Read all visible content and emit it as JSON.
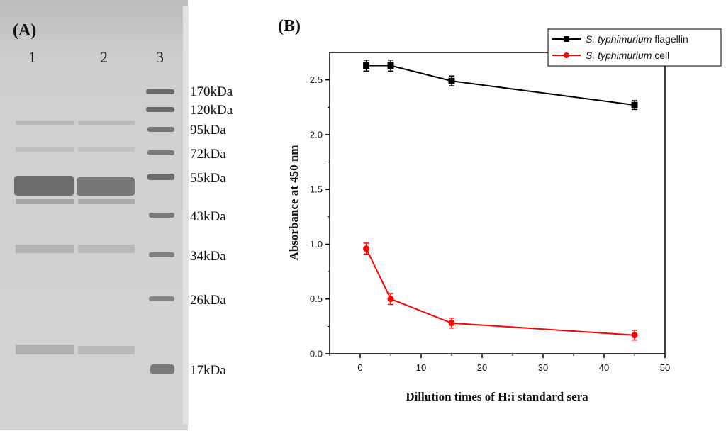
{
  "gel": {
    "panel_label": "(A)",
    "lanes": [
      "1",
      "2",
      "3"
    ],
    "markers": [
      "170kDa",
      "120kDa",
      "95kDa",
      "72kDa",
      "55kDa",
      "43kDa",
      "34kDa",
      "26kDa",
      "17kDa"
    ]
  },
  "chart_data": {
    "type": "line",
    "panel_label": "(B)",
    "title": "",
    "xlabel": "Dillution times of  H:i standard sera",
    "ylabel": "Absorbance at 450 nm",
    "xlim": [
      -5,
      50
    ],
    "ylim": [
      0.0,
      2.75
    ],
    "x_ticks": [
      0,
      10,
      20,
      30,
      40,
      50
    ],
    "y_ticks": [
      0.0,
      0.5,
      1.0,
      1.5,
      2.0,
      2.5
    ],
    "x_tick_labels": [
      "0",
      "10",
      "20",
      "30",
      "40",
      "50"
    ],
    "y_tick_labels": [
      "0.0",
      "0.5",
      "1.0",
      "1.5",
      "2.0",
      "2.5"
    ],
    "grid": false,
    "legend_position": "top-right",
    "series": [
      {
        "name_italic": "S. typhimurium",
        "name_rest": " flagellin",
        "color": "#000000",
        "marker": "square",
        "x": [
          1,
          5,
          15,
          45
        ],
        "y": [
          2.63,
          2.63,
          2.49,
          2.27
        ],
        "err": [
          0.05,
          0.05,
          0.045,
          0.04
        ]
      },
      {
        "name_italic": "S. typhimurium",
        "name_rest": " cell",
        "color": "#ff0000",
        "marker": "circle",
        "x": [
          1,
          5,
          15,
          45
        ],
        "y": [
          0.96,
          0.5,
          0.28,
          0.17
        ],
        "err": [
          0.05,
          0.05,
          0.045,
          0.045
        ]
      }
    ]
  }
}
